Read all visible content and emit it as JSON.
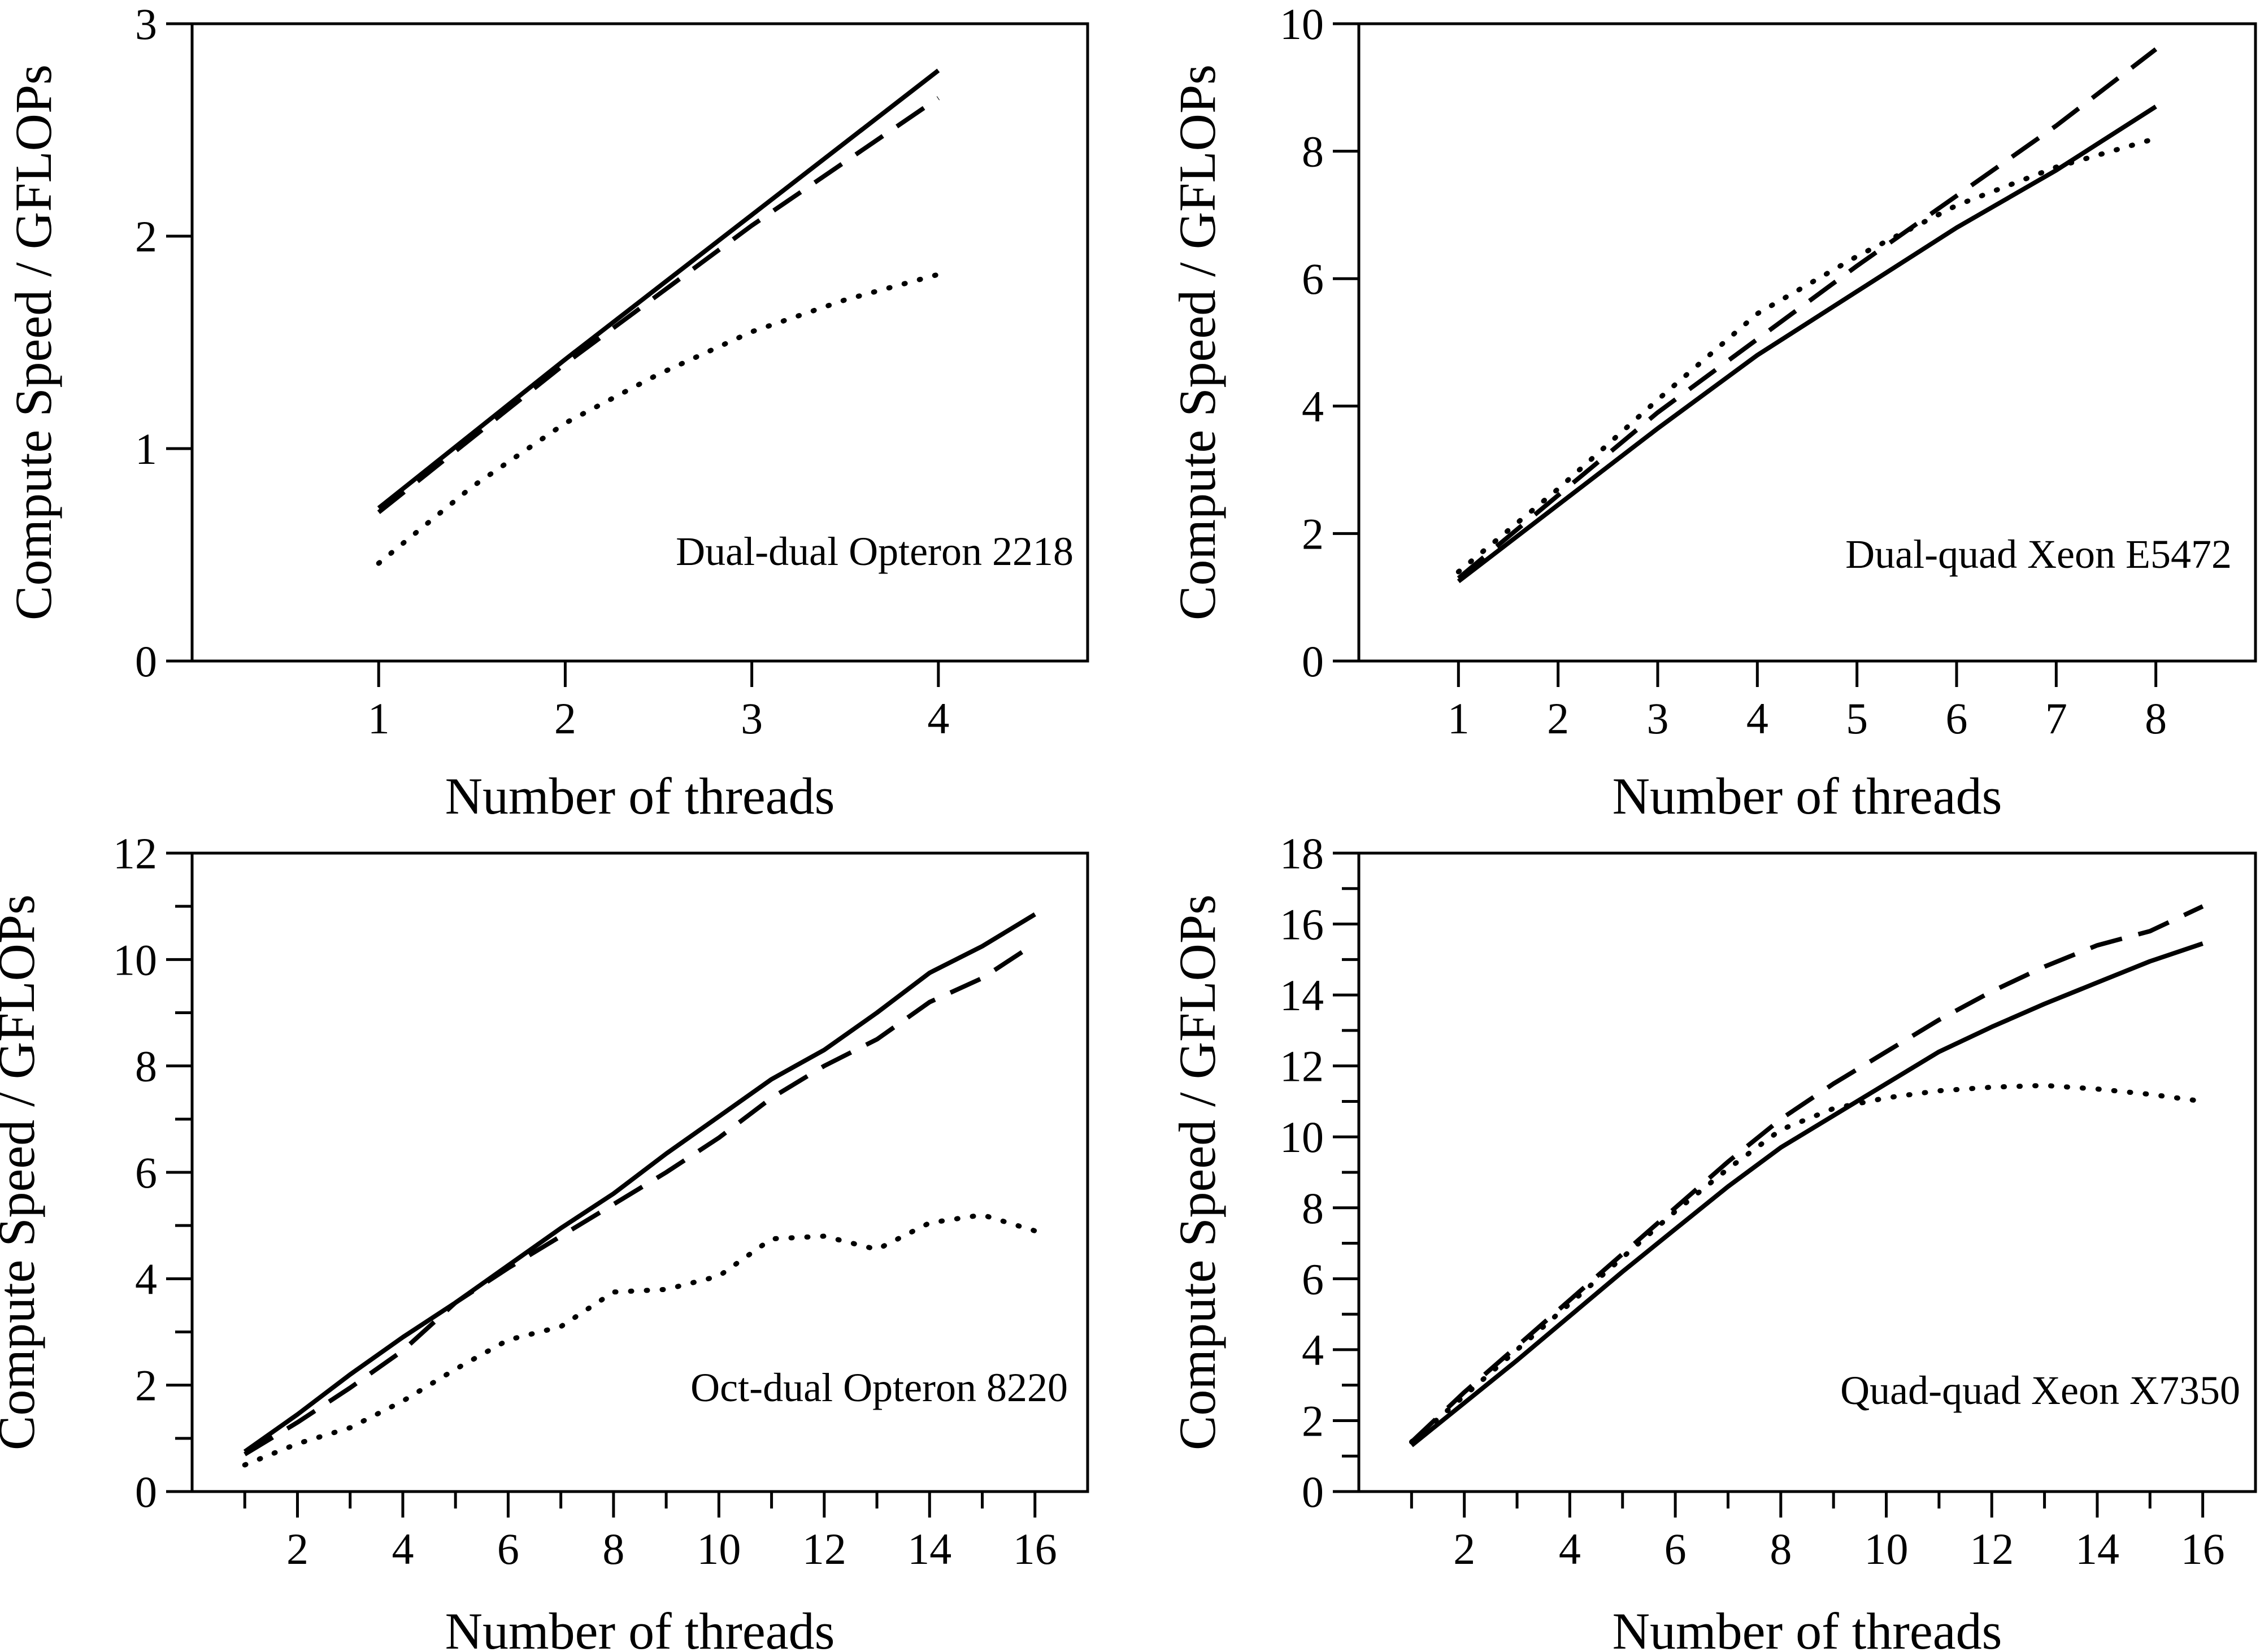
{
  "chart_data": [
    {
      "type": "line",
      "annotation": "Dual-dual Opteron 2218",
      "xlabel": "Number of threads",
      "ylabel": "Compute Speed / GFLOPs",
      "xlim": [
        0,
        4.8
      ],
      "ylim": [
        0,
        3
      ],
      "xticks": [
        1,
        2,
        3,
        4
      ],
      "yticks": [
        0,
        1,
        2,
        3
      ],
      "grid": false,
      "series": [
        {
          "style": "solid",
          "x": [
            1,
            2,
            3,
            4
          ],
          "y": [
            0.72,
            1.42,
            2.1,
            2.78
          ]
        },
        {
          "style": "dashed",
          "x": [
            1,
            2,
            3,
            4
          ],
          "y": [
            0.7,
            1.4,
            2.05,
            2.65
          ]
        },
        {
          "style": "dotted",
          "x": [
            1,
            1.5,
            2,
            2.5,
            3,
            3.5,
            4
          ],
          "y": [
            0.46,
            0.82,
            1.12,
            1.35,
            1.55,
            1.7,
            1.82
          ]
        }
      ]
    },
    {
      "type": "line",
      "annotation": "Dual-quad Xeon E5472",
      "xlabel": "Number of threads",
      "ylabel": "Compute Speed / GFLOPs",
      "xlim": [
        0,
        9
      ],
      "ylim": [
        0,
        10
      ],
      "xticks": [
        1,
        2,
        3,
        4,
        5,
        6,
        7,
        8
      ],
      "yticks": [
        0,
        2,
        4,
        6,
        8,
        10
      ],
      "grid": false,
      "series": [
        {
          "style": "solid",
          "x": [
            1,
            2,
            3,
            4,
            5,
            6,
            7,
            8
          ],
          "y": [
            1.25,
            2.45,
            3.65,
            4.8,
            5.8,
            6.8,
            7.7,
            8.7
          ]
        },
        {
          "style": "dashed",
          "x": [
            1,
            2,
            3,
            4,
            5,
            6,
            7,
            8
          ],
          "y": [
            1.3,
            2.6,
            3.9,
            5.05,
            6.2,
            7.3,
            8.4,
            9.6
          ]
        },
        {
          "style": "dotted",
          "x": [
            1,
            2,
            3,
            4,
            5,
            6,
            7,
            8
          ],
          "y": [
            1.4,
            2.7,
            4.1,
            5.45,
            6.35,
            7.15,
            7.75,
            8.2
          ]
        }
      ]
    },
    {
      "type": "line",
      "annotation": "Oct-dual Opteron 8220",
      "xlabel": "Number of threads",
      "ylabel": "Compute Speed / GFLOPs",
      "xlim": [
        0,
        17
      ],
      "ylim": [
        0,
        12
      ],
      "xticks": [
        1,
        2,
        3,
        4,
        5,
        6,
        7,
        8,
        9,
        10,
        11,
        12,
        13,
        14,
        15,
        16
      ],
      "xticklabels": [
        "",
        "2",
        "",
        "4",
        "",
        "6",
        "",
        "8",
        "",
        "10",
        "",
        "12",
        "",
        "14",
        "",
        "16"
      ],
      "yticks": [
        0,
        1,
        2,
        3,
        4,
        5,
        6,
        7,
        8,
        9,
        10,
        11,
        12
      ],
      "yticklabels": [
        "0",
        "",
        "2",
        "",
        "4",
        "",
        "6",
        "",
        "8",
        "",
        "10",
        "",
        "12"
      ],
      "grid": false,
      "series": [
        {
          "style": "solid",
          "x": [
            1,
            2,
            3,
            4,
            5,
            6,
            7,
            8,
            9,
            10,
            11,
            12,
            13,
            14,
            15,
            16
          ],
          "y": [
            0.75,
            1.45,
            2.2,
            2.9,
            3.55,
            4.25,
            4.95,
            5.6,
            6.35,
            7.05,
            7.75,
            8.3,
            9.0,
            9.75,
            10.25,
            10.85
          ]
        },
        {
          "style": "dashed",
          "x": [
            1,
            2,
            3,
            4,
            5,
            6,
            7,
            8,
            9,
            10,
            11,
            12,
            13,
            14,
            15,
            16
          ],
          "y": [
            0.7,
            1.3,
            1.95,
            2.65,
            3.55,
            4.2,
            4.8,
            5.4,
            6.0,
            6.65,
            7.4,
            8.0,
            8.5,
            9.2,
            9.65,
            10.3
          ]
        },
        {
          "style": "dotted",
          "x": [
            1,
            2,
            3,
            4,
            5,
            6,
            7,
            8,
            9,
            10,
            11,
            12,
            13,
            14,
            15,
            16
          ],
          "y": [
            0.5,
            0.9,
            1.2,
            1.7,
            2.3,
            2.85,
            3.1,
            3.75,
            3.8,
            4.05,
            4.75,
            4.8,
            4.55,
            5.05,
            5.2,
            4.9
          ]
        }
      ]
    },
    {
      "type": "line",
      "annotation": "Quad-quad Xeon X7350",
      "xlabel": "Number of threads",
      "ylabel": "Compute Speed / GFLOPs",
      "xlim": [
        0,
        17
      ],
      "ylim": [
        0,
        18
      ],
      "xticks": [
        1,
        2,
        3,
        4,
        5,
        6,
        7,
        8,
        9,
        10,
        11,
        12,
        13,
        14,
        15,
        16
      ],
      "xticklabels": [
        "",
        "2",
        "",
        "4",
        "",
        "6",
        "",
        "8",
        "",
        "10",
        "",
        "12",
        "",
        "14",
        "",
        "16"
      ],
      "yticks": [
        0,
        1,
        2,
        3,
        4,
        5,
        6,
        7,
        8,
        9,
        10,
        11,
        12,
        13,
        14,
        15,
        16,
        17,
        18
      ],
      "yticklabels": [
        "0",
        "",
        "2",
        "",
        "4",
        "",
        "6",
        "",
        "8",
        "",
        "10",
        "",
        "12",
        "",
        "14",
        "",
        "16",
        "",
        "18"
      ],
      "grid": false,
      "series": [
        {
          "style": "solid",
          "x": [
            1,
            2,
            3,
            4,
            5,
            6,
            7,
            8,
            9,
            10,
            11,
            12,
            13,
            14,
            15,
            16
          ],
          "y": [
            1.3,
            2.5,
            3.7,
            4.95,
            6.2,
            7.4,
            8.6,
            9.7,
            10.6,
            11.5,
            12.4,
            13.1,
            13.75,
            14.35,
            14.95,
            15.45
          ]
        },
        {
          "style": "dashed",
          "x": [
            1,
            2,
            3,
            4,
            5,
            6,
            7,
            8,
            9,
            10,
            11,
            12,
            13,
            14,
            15,
            16
          ],
          "y": [
            1.4,
            2.8,
            4.1,
            5.4,
            6.7,
            8.0,
            9.3,
            10.5,
            11.5,
            12.4,
            13.3,
            14.1,
            14.8,
            15.4,
            15.8,
            16.5
          ]
        },
        {
          "style": "dotted",
          "x": [
            1,
            2,
            3,
            4,
            5,
            6,
            7,
            8,
            9,
            10,
            11,
            12,
            13,
            14,
            15,
            16
          ],
          "y": [
            1.4,
            2.7,
            4.0,
            5.3,
            6.6,
            7.9,
            9.1,
            10.2,
            10.8,
            11.1,
            11.3,
            11.4,
            11.45,
            11.35,
            11.2,
            11.0
          ]
        }
      ]
    }
  ]
}
